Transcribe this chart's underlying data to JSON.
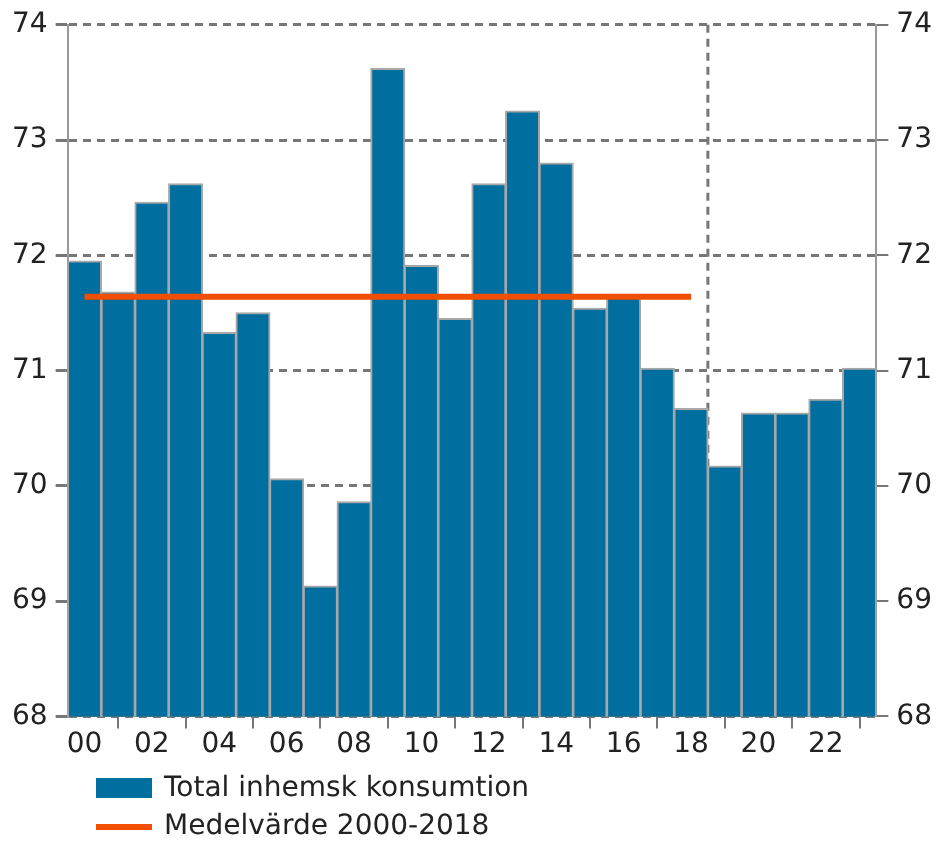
{
  "chart_data": {
    "type": "bar",
    "x": [
      2000,
      2001,
      2002,
      2003,
      2004,
      2005,
      2006,
      2007,
      2008,
      2009,
      2010,
      2011,
      2012,
      2013,
      2014,
      2015,
      2016,
      2017,
      2018,
      2019,
      2020,
      2021,
      2022,
      2023
    ],
    "series": [
      {
        "name": "Total inhemsk konsumtion",
        "color": "#006e9e",
        "values": [
          71.95,
          71.68,
          72.46,
          72.62,
          71.33,
          71.5,
          70.06,
          69.13,
          69.86,
          73.62,
          71.91,
          71.45,
          72.62,
          73.25,
          72.8,
          71.54,
          71.66,
          71.02,
          70.67,
          70.17,
          70.63,
          70.63,
          70.75,
          71.02
        ]
      },
      {
        "name": "Medelvärde 2000-2018",
        "type": "line",
        "color": "#f04e00",
        "values": [
          71.64,
          71.64,
          71.64,
          71.64,
          71.64,
          71.64,
          71.64,
          71.64,
          71.64,
          71.64,
          71.64,
          71.64,
          71.64,
          71.64,
          71.64,
          71.64,
          71.64,
          71.64,
          71.64,
          null,
          null,
          null,
          null,
          null
        ]
      }
    ],
    "xlim": [
      1999.5,
      2023.5
    ],
    "xticks": [
      {
        "value": 2000,
        "label": "00"
      },
      {
        "value": 2002,
        "label": "02"
      },
      {
        "value": 2004,
        "label": "04"
      },
      {
        "value": 2006,
        "label": "06"
      },
      {
        "value": 2008,
        "label": "08"
      },
      {
        "value": 2010,
        "label": "10"
      },
      {
        "value": 2012,
        "label": "12"
      },
      {
        "value": 2014,
        "label": "14"
      },
      {
        "value": 2016,
        "label": "16"
      },
      {
        "value": 2018,
        "label": "18"
      },
      {
        "value": 2020,
        "label": "20"
      },
      {
        "value": 2022,
        "label": "22"
      }
    ],
    "ylim": [
      68,
      74
    ],
    "yticks": [
      68,
      69,
      70,
      71,
      72,
      73,
      74
    ],
    "y2lim": [
      68,
      74
    ],
    "y2ticks": [
      68,
      69,
      70,
      71,
      72,
      73,
      74
    ],
    "ref_lines": [
      {
        "axis": "x",
        "value": 2018.5,
        "color": "#777777",
        "line_style": "dashed"
      }
    ],
    "grid": "y",
    "legend": "bottom left",
    "marker": "none"
  }
}
